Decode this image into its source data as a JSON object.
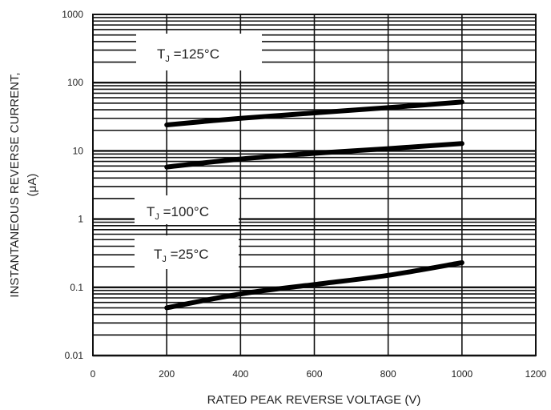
{
  "chart_data": {
    "type": "line",
    "title": "",
    "xlabel": "RATED PEAK REVERSE VOLTAGE (V)",
    "ylabel": "INSTANTANEOUS REVERSE CURRENT,",
    "ylabel_unit": "(μA)",
    "xlim": [
      0,
      1200
    ],
    "ylim": [
      0.01,
      1000
    ],
    "yscale": "log",
    "grid": true,
    "x_ticks": [
      "0",
      "200",
      "400",
      "600",
      "800",
      "1000",
      "1200"
    ],
    "y_ticks": [
      "0.01",
      "0.1",
      "1",
      "10",
      "100",
      "1000"
    ],
    "series": [
      {
        "name": "TJ =125°C",
        "x": [
          200,
          400,
          600,
          800,
          1000
        ],
        "y": [
          24,
          30,
          36,
          43,
          52
        ]
      },
      {
        "name": "TJ =100°C",
        "x": [
          200,
          400,
          600,
          800,
          1000
        ],
        "y": [
          5.8,
          7.6,
          9.2,
          10.8,
          12.8
        ]
      },
      {
        "name": "TJ =25°C",
        "x": [
          200,
          400,
          600,
          800,
          1000
        ],
        "y": [
          0.05,
          0.08,
          0.11,
          0.15,
          0.23
        ]
      }
    ],
    "series_labels": [
      {
        "text": "T",
        "sub": "J",
        "rest": " =125°C"
      },
      {
        "text": "T",
        "sub": "J",
        "rest": " =100°C"
      },
      {
        "text": "T",
        "sub": "J",
        "rest": " =25°C"
      }
    ]
  }
}
